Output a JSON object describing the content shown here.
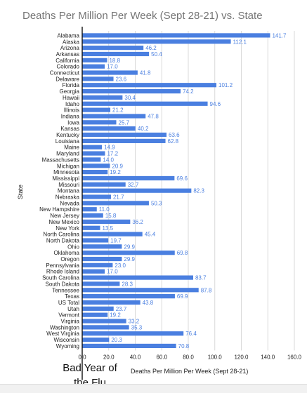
{
  "chart_data": {
    "type": "bar",
    "orientation": "horizontal",
    "title": "Deaths Per Million Per Week (Sept 28-21) vs. State",
    "xlabel": "Deaths Per Million Per Week (Sept 28-21)",
    "ylabel": "State",
    "xlim": [
      0,
      160
    ],
    "xticks": [
      "0.0",
      "20.0",
      "40.0",
      "60.0",
      "80.0",
      "100.0",
      "120.0",
      "140.0",
      "160.0"
    ],
    "grid": true,
    "bar_color": "#4a7fe0",
    "label_color": "#4a7fe0",
    "reference_line": {
      "x": 0,
      "label": "Bad Year of the Flu"
    },
    "categories": [
      "Alabama",
      "Alaska",
      "Arizona",
      "Arkansas",
      "California",
      "Colorado",
      "Connecticut",
      "Delaware",
      "Florida",
      "Georgia",
      "Hawaii",
      "Idaho",
      "Illinois",
      "Indiana",
      "Iowa",
      "Kansas",
      "Kentucky",
      "Louisiana",
      "Maine",
      "Maryland",
      "Massachusetts",
      "Michigan",
      "Minnesota",
      "Mississippi",
      "Missouri",
      "Montana",
      "Nebraska",
      "Nevada",
      "New Hampshire",
      "New Jersey",
      "New Mexico",
      "New York",
      "North Carolina",
      "North Dakota",
      "Ohio",
      "Oklahoma",
      "Oregon",
      "Pennsylvania",
      "Rhode Island",
      "South Carolina",
      "South Dakota",
      "Tennessee",
      "Texas",
      "US Total",
      "Utah",
      "Vermont",
      "Virginia",
      "Washington",
      "West Virginia",
      "Wisconsin",
      "Wyoming"
    ],
    "values": [
      141.7,
      112.1,
      46.2,
      50.4,
      18.8,
      17.0,
      41.8,
      23.6,
      101.2,
      74.2,
      30.4,
      94.6,
      21.2,
      47.8,
      25.7,
      40.2,
      63.6,
      62.8,
      14.9,
      17.2,
      14.0,
      20.9,
      19.2,
      69.6,
      32.7,
      82.3,
      21.7,
      50.3,
      11.0,
      15.8,
      36.2,
      13.5,
      45.4,
      19.7,
      29.9,
      69.8,
      29.9,
      23.0,
      17.0,
      83.7,
      28.3,
      87.8,
      69.9,
      43.8,
      23.7,
      19.2,
      33.2,
      35.3,
      76.4,
      20.3,
      70.8
    ],
    "value_labels": [
      "141.7",
      "112.1",
      "46.2",
      "50.4",
      "18.8",
      "17.0",
      "41.8",
      "23.6",
      "101.2",
      "74.2",
      "30.4",
      "94.6",
      "21.2",
      "47.8",
      "25.7",
      "40.2",
      "63.6",
      "62.8",
      "14.9",
      "17.2",
      "14.0",
      "20.9",
      "19.2",
      "69.6",
      "32.7",
      "82.3",
      "21.7",
      "50.3",
      "11.0",
      "15.8",
      "36.2",
      "13.5",
      "45.4",
      "19.7",
      "29.9",
      "69.8",
      "29.9",
      "23.0",
      "17.0",
      "83.7",
      "28.3",
      "87.8",
      "69.9",
      "43.8",
      "23.7",
      "19.2",
      "33.2",
      "35.3",
      "76.4",
      "20.3",
      "70.8"
    ]
  }
}
